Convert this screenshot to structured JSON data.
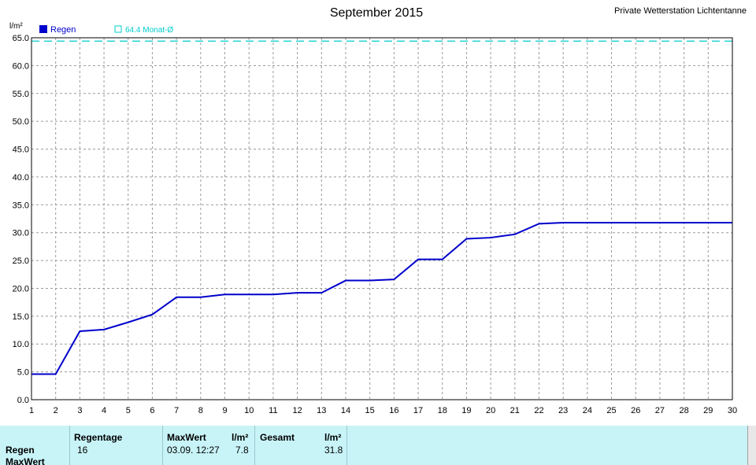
{
  "station": "Private Wetterstation Lichtentanne",
  "chart_data": {
    "type": "line",
    "title": "September 2015",
    "ylabel": "l/m²",
    "x": [
      1,
      2,
      3,
      4,
      5,
      6,
      7,
      8,
      9,
      10,
      11,
      12,
      13,
      14,
      15,
      16,
      17,
      18,
      19,
      20,
      21,
      22,
      23,
      24,
      25,
      26,
      27,
      28,
      29,
      30
    ],
    "xlim": [
      1,
      30
    ],
    "ylim": [
      0,
      65
    ],
    "y_ticks": [
      "0.0",
      "5.0",
      "10.0",
      "15.0",
      "20.0",
      "25.0",
      "30.0",
      "35.0",
      "40.0",
      "45.0",
      "50.0",
      "55.0",
      "60.0",
      "65.0"
    ],
    "grid": true,
    "legend_position": "top-left",
    "series": [
      {
        "name": "Regen",
        "color": "#0000cc",
        "values": [
          4.6,
          4.6,
          12.3,
          12.6,
          13.9,
          15.3,
          18.4,
          18.4,
          18.9,
          18.9,
          18.9,
          19.2,
          19.2,
          21.4,
          21.4,
          21.6,
          25.2,
          25.2,
          28.9,
          29.1,
          29.7,
          31.6,
          31.8,
          31.8,
          31.8,
          31.8,
          31.8,
          31.8,
          31.8,
          31.8
        ]
      }
    ],
    "reference": {
      "value": 64.4,
      "label": "64.4 Monat-Ø",
      "color": "#00cccc"
    }
  },
  "summary": {
    "rows": [
      "Regen",
      "MaxWert"
    ],
    "regentage_header": "Regentage",
    "regentage_value": "16",
    "maxwert_header": "MaxWert",
    "maxwert_unit": "l/m²",
    "maxwert_date": "03.09.  12:27",
    "maxwert_value": "7.8",
    "gesamt_header": "Gesamt",
    "gesamt_unit": "l/m²",
    "gesamt_value": "31.8"
  }
}
